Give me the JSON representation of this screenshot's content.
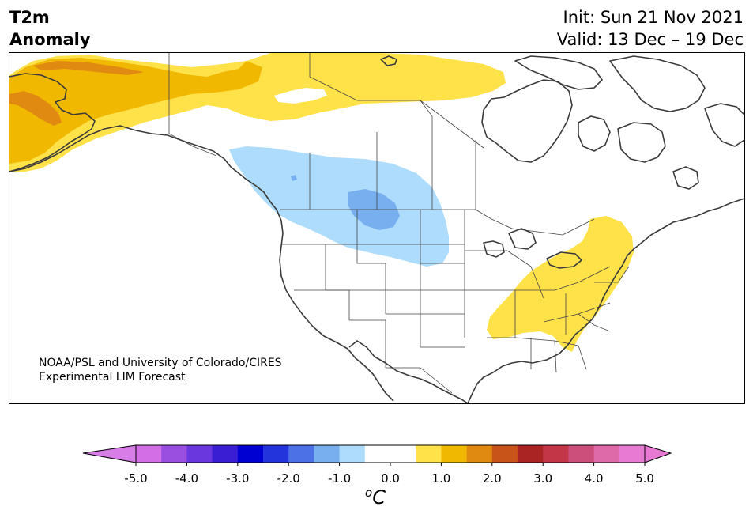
{
  "title": {
    "variable": "T2m",
    "field": "Anomaly",
    "init": "Init: Sun 21 Nov 2021",
    "valid": "Valid: 13 Dec – 19 Dec"
  },
  "credit": {
    "line1": "NOAA/PSL and University of Colorado/CIRES",
    "line2": "Experimental LIM Forecast"
  },
  "colorbar": {
    "units_base": "C",
    "units_sup": "o",
    "tick_labels": [
      "-5.0",
      "-4.0",
      "-3.0",
      "-2.0",
      "-1.0",
      "0.0",
      "1.0",
      "2.0",
      "3.0",
      "4.0",
      "5.0"
    ],
    "colors": [
      "#d36ee6",
      "#9b4fe0",
      "#6a37de",
      "#3a1ed4",
      "#0000d2",
      "#2434dc",
      "#4c70e6",
      "#78afef",
      "#aedcfc",
      "#ffffff",
      "#ffffff",
      "#ffe24a",
      "#f1b800",
      "#e08a12",
      "#c8541a",
      "#aa2424",
      "#c23648",
      "#cc4e7a",
      "#de6aaa",
      "#e87ad4"
    ],
    "under_color": "#d87ce8",
    "over_color": "#e87ad4"
  },
  "map_colors": {
    "warm_light": "#ffe24a",
    "warm_medium": "#f1b800",
    "warm_dark": "#e08a12",
    "cold_light": "#aedcfc",
    "cold_medium": "#78afef",
    "coast": "#3a3a3a",
    "border": "#444444"
  }
}
